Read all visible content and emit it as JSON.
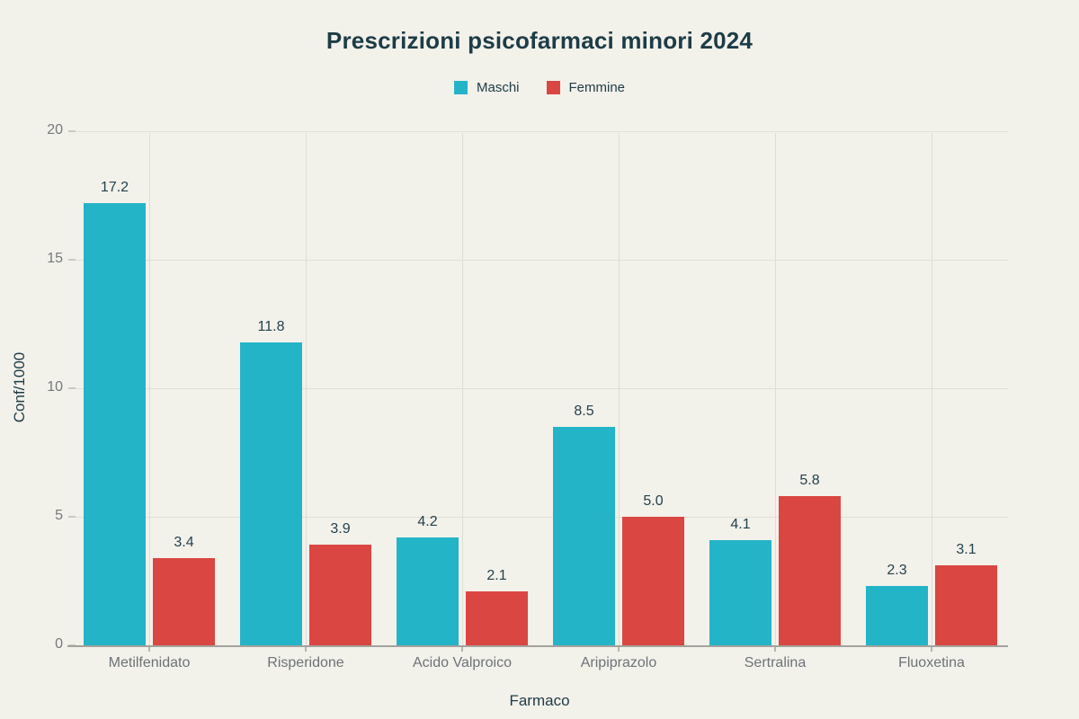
{
  "title": "Prescrizioni psicofarmaci minori 2024",
  "colors": {
    "background": "#f2f1ea",
    "maschi": "#23b4c8",
    "femmine": "#da4641",
    "title_text": "#1d3c46",
    "value_label": "#24414c",
    "y_tick_label": "#76797c",
    "x_category_label": "#6e7377",
    "gridline": "#dfddd5",
    "axis_line": "#a3a29c"
  },
  "chart_data": {
    "type": "bar",
    "title": "Prescrizioni psicofarmaci minori 2024",
    "categories": [
      "Metilfenidato",
      "Risperidone",
      "Acido Valproico",
      "Aripiprazolo",
      "Sertralina",
      "Fluoxetina"
    ],
    "series": [
      {
        "name": "Maschi",
        "color": "#23b4c8",
        "values": [
          17.2,
          11.8,
          4.2,
          8.5,
          4.1,
          2.3
        ]
      },
      {
        "name": "Femmine",
        "color": "#da4641",
        "values": [
          3.4,
          3.9,
          2.1,
          5.0,
          5.8,
          3.1
        ]
      }
    ],
    "value_labels": [
      "17.2",
      "3.4",
      "11.8",
      "3.9",
      "4.2",
      "2.1",
      "8.5",
      "5.0",
      "4.1",
      "5.8",
      "2.3",
      "3.1"
    ],
    "xlabel": "Farmaco",
    "ylabel": "Conf/1000",
    "ylim": [
      0,
      20
    ],
    "yticks": [
      0,
      5,
      10,
      15,
      20
    ],
    "grid": true,
    "legend_position": "top",
    "value_label_format": "one-decimal"
  }
}
